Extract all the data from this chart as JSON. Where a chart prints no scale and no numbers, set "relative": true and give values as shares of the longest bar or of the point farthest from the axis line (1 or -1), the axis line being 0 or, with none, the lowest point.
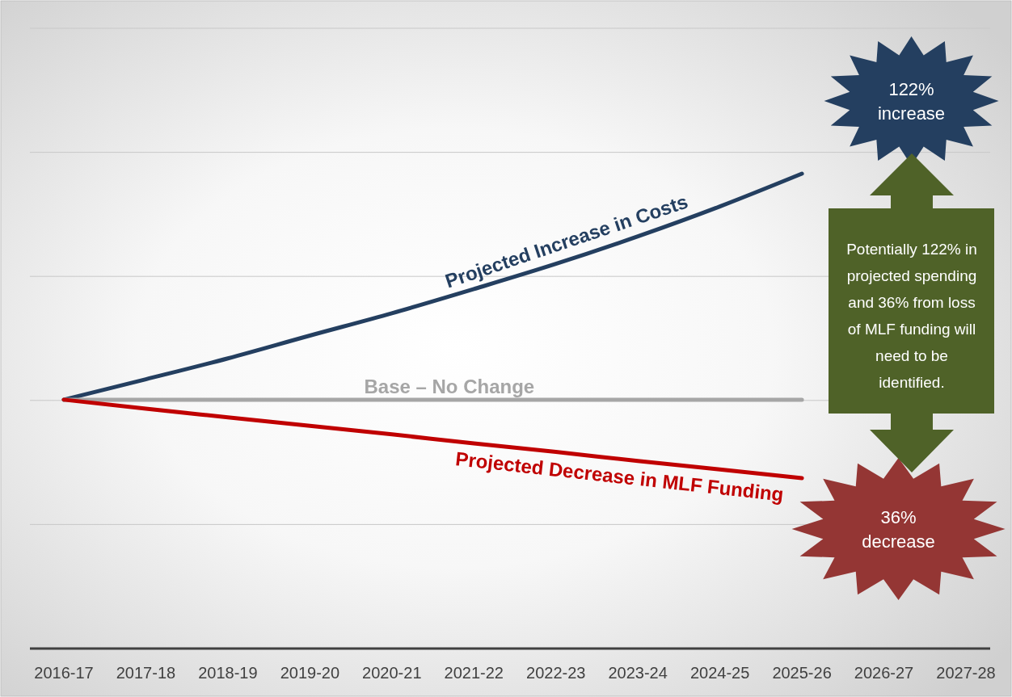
{
  "chart_data": {
    "type": "line",
    "relative": true,
    "grid": "y",
    "tick_labels": "x",
    "marker": "none",
    "line_style": "solid",
    "categories": [
      "2016-17",
      "2017-18",
      "2018-19",
      "2019-20",
      "2020-21",
      "2021-22",
      "2022-23",
      "2023-24",
      "2024-25",
      "2025-26",
      "2026-27",
      "2027-28"
    ],
    "series": [
      {
        "name": "Projected Increase in Costs",
        "color": "#243f60",
        "values": [
          0.524,
          0.567,
          0.611,
          0.659,
          0.706,
          0.757,
          0.81,
          0.868,
          0.931,
          1,
          null,
          null
        ]
      },
      {
        "name": "Base – No Change",
        "color": "#a6a6a6",
        "values": [
          0.524,
          0.524,
          0.524,
          0.524,
          0.524,
          0.524,
          0.524,
          0.524,
          0.524,
          0.524,
          null,
          null
        ]
      },
      {
        "name": "Projected Decrease in MLF Funding",
        "color": "#c00000",
        "values": [
          0.524,
          0.505,
          0.487,
          0.469,
          0.451,
          0.432,
          0.414,
          0.395,
          0.377,
          0.359,
          null,
          null
        ]
      }
    ],
    "annotations": [
      "122% increase",
      "36% decrease",
      "Potentially 122% in projected spending and 36% from loss of MLF funding will need to be identified."
    ]
  }
}
